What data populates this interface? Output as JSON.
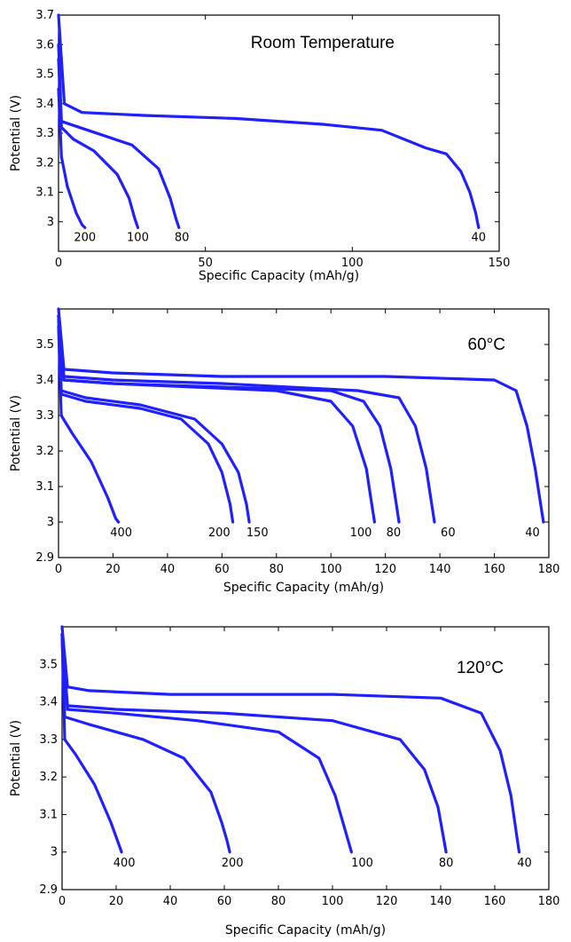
{
  "chart_data": [
    {
      "type": "line",
      "title": "Room Temperature",
      "xlabel": "Specific Capacity (mAh/g)",
      "ylabel": "Potential (V)",
      "xlim": [
        0,
        150
      ],
      "ylim": [
        2.9,
        3.7
      ],
      "xticks": [
        "0",
        "50",
        "100",
        "150"
      ],
      "yticks": [
        "3",
        "3.1",
        "3.2",
        "3.3",
        "3.4",
        "3.5",
        "3.6",
        "3.7"
      ],
      "grid": false,
      "line_color": "#1f1fff",
      "series": [
        {
          "name": "200",
          "x": [
            0,
            1,
            3,
            6,
            8,
            9
          ],
          "y": [
            3.45,
            3.22,
            3.12,
            3.03,
            2.99,
            2.98
          ]
        },
        {
          "name": "100",
          "x": [
            0,
            1,
            5,
            12,
            20,
            24,
            26,
            27
          ],
          "y": [
            3.55,
            3.32,
            3.28,
            3.24,
            3.16,
            3.08,
            3.01,
            2.98
          ]
        },
        {
          "name": "80",
          "x": [
            0,
            1,
            10,
            25,
            34,
            38,
            40,
            41
          ],
          "y": [
            3.6,
            3.34,
            3.31,
            3.26,
            3.18,
            3.08,
            3.01,
            2.98
          ]
        },
        {
          "name": "40",
          "x": [
            0,
            2,
            8,
            30,
            60,
            90,
            110,
            125,
            132,
            137,
            140,
            142,
            143
          ],
          "y": [
            3.7,
            3.4,
            3.37,
            3.36,
            3.35,
            3.33,
            3.31,
            3.25,
            3.23,
            3.17,
            3.1,
            3.03,
            2.98
          ]
        }
      ],
      "curve_labels": [
        {
          "text": "200",
          "x": 9,
          "y": 2.97
        },
        {
          "text": "100",
          "x": 27,
          "y": 2.97
        },
        {
          "text": "80",
          "x": 42,
          "y": 2.97
        },
        {
          "text": "40",
          "x": 143,
          "y": 2.97
        }
      ]
    },
    {
      "type": "line",
      "title": "60°C",
      "xlabel": "Specific Capacity (mAh/g)",
      "ylabel": "Potential (V)",
      "xlim": [
        0,
        180
      ],
      "ylim": [
        2.9,
        3.6
      ],
      "xticks": [
        "0",
        "20",
        "40",
        "60",
        "80",
        "100",
        "120",
        "140",
        "160",
        "180"
      ],
      "yticks": [
        "2.9",
        "3",
        "3.1",
        "3.2",
        "3.3",
        "3.4",
        "3.5"
      ],
      "grid": false,
      "line_color": "#1f1fff",
      "series": [
        {
          "name": "400",
          "x": [
            0,
            1,
            5,
            12,
            18,
            21,
            22
          ],
          "y": [
            3.55,
            3.3,
            3.25,
            3.17,
            3.07,
            3.01,
            3.0
          ]
        },
        {
          "name": "200",
          "x": [
            0,
            1,
            10,
            30,
            45,
            55,
            60,
            63,
            64
          ],
          "y": [
            3.58,
            3.36,
            3.34,
            3.32,
            3.29,
            3.22,
            3.14,
            3.05,
            3.0
          ]
        },
        {
          "name": "150",
          "x": [
            0,
            1,
            10,
            30,
            50,
            60,
            66,
            69,
            70
          ],
          "y": [
            3.58,
            3.37,
            3.35,
            3.33,
            3.29,
            3.22,
            3.14,
            3.05,
            3.0
          ]
        },
        {
          "name": "100",
          "x": [
            0,
            2,
            20,
            50,
            80,
            100,
            108,
            113,
            115,
            116
          ],
          "y": [
            3.58,
            3.4,
            3.39,
            3.38,
            3.37,
            3.34,
            3.27,
            3.15,
            3.05,
            3.0
          ]
        },
        {
          "name": "80",
          "x": [
            0,
            2,
            20,
            60,
            100,
            112,
            118,
            122,
            124,
            125
          ],
          "y": [
            3.58,
            3.4,
            3.39,
            3.38,
            3.37,
            3.34,
            3.27,
            3.15,
            3.05,
            3.0
          ]
        },
        {
          "name": "60",
          "x": [
            0,
            2,
            20,
            60,
            110,
            125,
            131,
            135,
            137,
            138
          ],
          "y": [
            3.58,
            3.41,
            3.4,
            3.39,
            3.37,
            3.35,
            3.27,
            3.15,
            3.05,
            3.0
          ]
        },
        {
          "name": "40",
          "x": [
            0,
            2,
            20,
            60,
            120,
            160,
            168,
            172,
            175,
            177,
            178
          ],
          "y": [
            3.6,
            3.43,
            3.42,
            3.41,
            3.41,
            3.4,
            3.37,
            3.27,
            3.15,
            3.05,
            3.0
          ]
        }
      ],
      "curve_labels": [
        {
          "text": "400",
          "x": 23,
          "y": 2.99
        },
        {
          "text": "200",
          "x": 59,
          "y": 2.99
        },
        {
          "text": "150",
          "x": 73,
          "y": 2.99
        },
        {
          "text": "100",
          "x": 111,
          "y": 2.99
        },
        {
          "text": "80",
          "x": 123,
          "y": 2.99
        },
        {
          "text": "60",
          "x": 143,
          "y": 2.99
        },
        {
          "text": "40",
          "x": 174,
          "y": 2.99
        }
      ]
    },
    {
      "type": "line",
      "title": "120°C",
      "xlabel": "Specific Capacity (mAh/g)",
      "ylabel": "Potential (V)",
      "xlim": [
        0,
        180
      ],
      "ylim": [
        2.9,
        3.6
      ],
      "xticks": [
        "0",
        "20",
        "40",
        "60",
        "80",
        "100",
        "120",
        "140",
        "160",
        "180"
      ],
      "yticks": [
        "2.9",
        "3",
        "3.1",
        "3.2",
        "3.3",
        "3.4",
        "3.5"
      ],
      "grid": false,
      "line_color": "#1f1fff",
      "series": [
        {
          "name": "400",
          "x": [
            0,
            1,
            5,
            12,
            18,
            21,
            22
          ],
          "y": [
            3.58,
            3.3,
            3.26,
            3.18,
            3.08,
            3.02,
            3.0
          ]
        },
        {
          "name": "200",
          "x": [
            0,
            1,
            10,
            30,
            45,
            55,
            59,
            61,
            62
          ],
          "y": [
            3.58,
            3.36,
            3.34,
            3.3,
            3.25,
            3.16,
            3.08,
            3.03,
            3.0
          ]
        },
        {
          "name": "100",
          "x": [
            0,
            2,
            20,
            50,
            80,
            95,
            101,
            105,
            107
          ],
          "y": [
            3.58,
            3.38,
            3.37,
            3.35,
            3.32,
            3.25,
            3.15,
            3.05,
            3.0
          ]
        },
        {
          "name": "80",
          "x": [
            0,
            2,
            20,
            60,
            100,
            125,
            134,
            139,
            141,
            142
          ],
          "y": [
            3.58,
            3.39,
            3.38,
            3.37,
            3.35,
            3.3,
            3.22,
            3.12,
            3.04,
            3.0
          ]
        },
        {
          "name": "40",
          "x": [
            0,
            2,
            10,
            40,
            100,
            140,
            155,
            162,
            166,
            168,
            169
          ],
          "y": [
            3.6,
            3.44,
            3.43,
            3.42,
            3.42,
            3.41,
            3.37,
            3.27,
            3.15,
            3.05,
            3.0
          ]
        }
      ],
      "curve_labels": [
        {
          "text": "400",
          "x": 23,
          "y": 2.99
        },
        {
          "text": "200",
          "x": 63,
          "y": 2.99
        },
        {
          "text": "100",
          "x": 111,
          "y": 2.99
        },
        {
          "text": "80",
          "x": 142,
          "y": 2.99
        },
        {
          "text": "40",
          "x": 171,
          "y": 2.99
        }
      ]
    }
  ]
}
